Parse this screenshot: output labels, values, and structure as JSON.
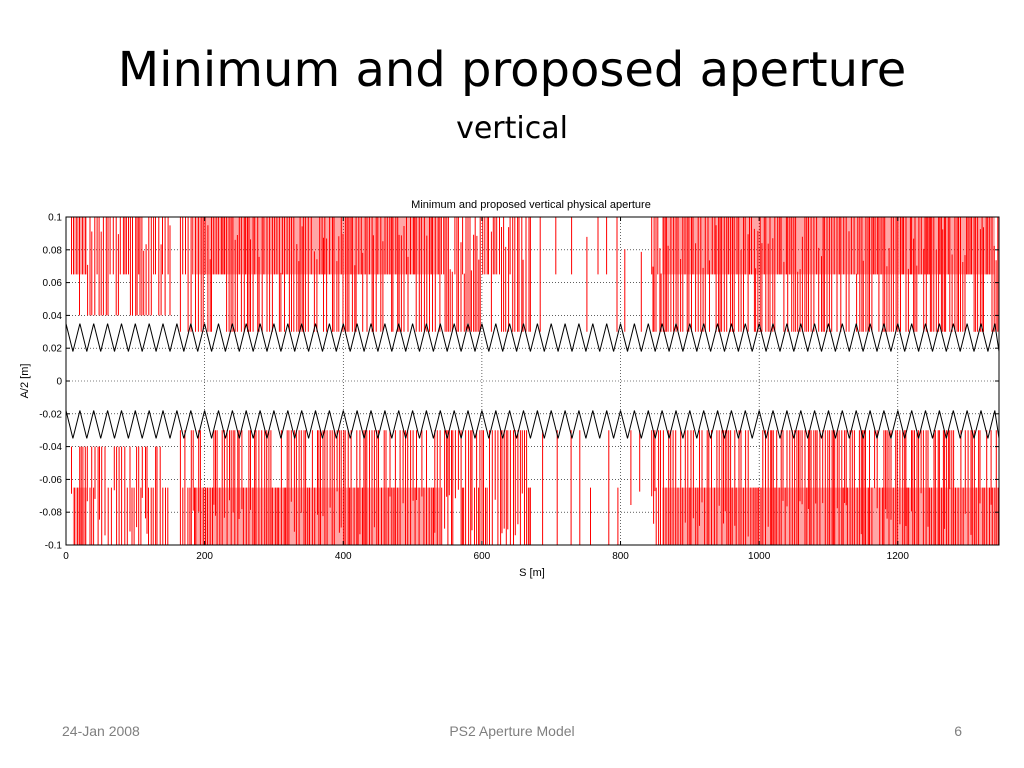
{
  "slide": {
    "title": "Minimum and proposed aperture",
    "subtitle": "vertical"
  },
  "footer": {
    "date": "24-Jan 2008",
    "center": "PS2 Aperture Model",
    "page": "6"
  },
  "colors": {
    "aperture": "#ff0000",
    "minimum": "#000000",
    "grid": "#000000"
  },
  "chart_data": {
    "type": "line",
    "title": "Minimum and proposed vertical physical aperture",
    "xlabel": "S [m]",
    "ylabel": "A/2 [m]",
    "xlim": [
      0,
      1346
    ],
    "ylim": [
      -0.1,
      0.1
    ],
    "xticks": [
      0,
      200,
      400,
      600,
      800,
      1000,
      1200
    ],
    "yticks": [
      -0.1,
      -0.08,
      -0.06,
      -0.04,
      -0.02,
      0,
      0.02,
      0.04,
      0.06,
      0.08,
      0.1
    ],
    "grid": true,
    "series": [
      {
        "role": "proposed aperture (upper)",
        "color": "#ff0000",
        "levels": [
          0.03,
          0.065,
          0.1
        ],
        "segments": [
          {
            "x": [
              0,
              150
            ],
            "pattern": "dense vertical lines between 0.04 and 0.1"
          },
          {
            "x": [
              160,
              670
            ],
            "pattern": "dense vertical lines between 0.03 and 0.1, solid band 0.065-0.1 from 180 to 540"
          },
          {
            "x": [
              670,
              830
            ],
            "pattern": "sparse lines; gap"
          },
          {
            "x": [
              840,
              1346
            ],
            "pattern": "dense vertical lines between 0.03 and 0.1, solid band 0.065-0.1"
          }
        ]
      },
      {
        "role": "proposed aperture (lower)",
        "color": "#ff0000",
        "levels": [
          -0.03,
          -0.065,
          -0.1
        ],
        "segments": [
          {
            "x": [
              0,
              150
            ],
            "pattern": "dense vertical lines between -0.04 and -0.1"
          },
          {
            "x": [
              160,
              670
            ],
            "pattern": "dense vertical lines between -0.03 and -0.1, solid band -0.065 to -0.1"
          },
          {
            "x": [
              670,
              830
            ],
            "pattern": "sparse lines; gap"
          },
          {
            "x": [
              840,
              1346
            ],
            "pattern": "dense vertical lines between -0.03 and -0.1"
          }
        ]
      },
      {
        "role": "minimum aperture (upper)",
        "color": "#000000",
        "shape": "triangle wave",
        "min": 0.018,
        "max": 0.035,
        "period_m": 20
      },
      {
        "role": "minimum aperture (lower)",
        "color": "#000000",
        "shape": "triangle wave",
        "min": -0.035,
        "max": -0.018,
        "period_m": 20
      }
    ]
  }
}
